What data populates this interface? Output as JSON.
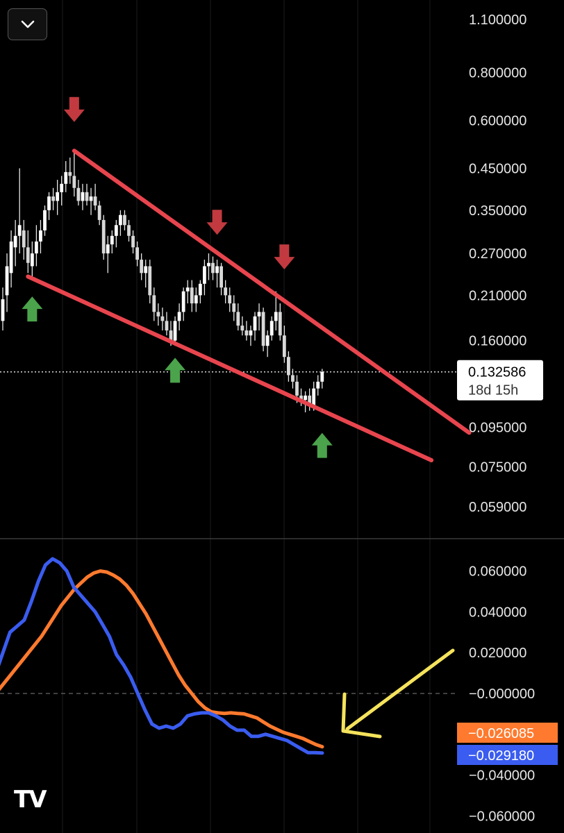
{
  "toolbar": {
    "collapse_icon": "chevron-down-icon"
  },
  "logo_text": "TV",
  "chart_data": [
    {
      "type": "candlestick",
      "y_scale": "log",
      "yticks": [
        "1.100000",
        "0.800000",
        "0.600000",
        "0.450000",
        "0.350000",
        "0.270000",
        "0.210000",
        "0.160000",
        "0.095000",
        "0.075000",
        "0.059000"
      ],
      "ytick_values": [
        1.1,
        0.8,
        0.6,
        0.45,
        0.35,
        0.27,
        0.21,
        0.16,
        0.095,
        0.075,
        0.059
      ],
      "current_price": {
        "value": "0.132586",
        "countdown": "18d 15h"
      },
      "trendlines": [
        {
          "name": "resistance",
          "color": "#e8454e",
          "from": [
            17,
            0.5
          ],
          "to": [
            111,
            0.092
          ]
        },
        {
          "name": "support",
          "color": "#e8454e",
          "from": [
            6,
            0.235
          ],
          "to": [
            102,
            0.078
          ]
        }
      ],
      "markers": [
        {
          "type": "down",
          "color": "#c23a3f",
          "x": 17,
          "price": 0.63
        },
        {
          "type": "down",
          "color": "#c23a3f",
          "x": 51,
          "price": 0.32
        },
        {
          "type": "down",
          "color": "#c23a3f",
          "x": 67,
          "price": 0.26
        },
        {
          "type": "up",
          "color": "#4ba34b",
          "x": 7,
          "price": 0.195
        },
        {
          "type": "up",
          "color": "#4ba34b",
          "x": 41,
          "price": 0.135
        },
        {
          "type": "up",
          "color": "#4ba34b",
          "x": 76,
          "price": 0.086
        }
      ],
      "ohlc": [
        [
          0.18,
          0.22,
          0.17,
          0.205
        ],
        [
          0.21,
          0.27,
          0.19,
          0.25
        ],
        [
          0.24,
          0.31,
          0.22,
          0.29
        ],
        [
          0.28,
          0.33,
          0.25,
          0.3
        ],
        [
          0.3,
          0.45,
          0.27,
          0.32
        ],
        [
          0.31,
          0.33,
          0.26,
          0.28
        ],
        [
          0.28,
          0.31,
          0.24,
          0.255
        ],
        [
          0.25,
          0.29,
          0.23,
          0.27
        ],
        [
          0.27,
          0.32,
          0.25,
          0.29
        ],
        [
          0.29,
          0.33,
          0.27,
          0.31
        ],
        [
          0.31,
          0.36,
          0.3,
          0.35
        ],
        [
          0.35,
          0.39,
          0.33,
          0.38
        ],
        [
          0.38,
          0.4,
          0.35,
          0.37
        ],
        [
          0.37,
          0.42,
          0.34,
          0.39
        ],
        [
          0.39,
          0.43,
          0.36,
          0.41
        ],
        [
          0.41,
          0.47,
          0.39,
          0.44
        ],
        [
          0.44,
          0.48,
          0.41,
          0.43
        ],
        [
          0.43,
          0.5,
          0.38,
          0.4
        ],
        [
          0.4,
          0.42,
          0.36,
          0.37
        ],
        [
          0.37,
          0.41,
          0.35,
          0.39
        ],
        [
          0.39,
          0.41,
          0.36,
          0.37
        ],
        [
          0.37,
          0.4,
          0.34,
          0.38
        ],
        [
          0.38,
          0.41,
          0.35,
          0.36
        ],
        [
          0.36,
          0.37,
          0.32,
          0.33
        ],
        [
          0.33,
          0.34,
          0.26,
          0.27
        ],
        [
          0.27,
          0.3,
          0.24,
          0.285
        ],
        [
          0.285,
          0.31,
          0.27,
          0.3
        ],
        [
          0.3,
          0.33,
          0.28,
          0.32
        ],
        [
          0.32,
          0.35,
          0.3,
          0.34
        ],
        [
          0.34,
          0.35,
          0.31,
          0.32
        ],
        [
          0.32,
          0.33,
          0.29,
          0.3
        ],
        [
          0.3,
          0.31,
          0.27,
          0.28
        ],
        [
          0.28,
          0.29,
          0.25,
          0.26
        ],
        [
          0.26,
          0.27,
          0.23,
          0.24
        ],
        [
          0.24,
          0.26,
          0.22,
          0.25
        ],
        [
          0.25,
          0.26,
          0.2,
          0.21
        ],
        [
          0.21,
          0.22,
          0.18,
          0.19
        ],
        [
          0.19,
          0.2,
          0.175,
          0.185
        ],
        [
          0.185,
          0.195,
          0.17,
          0.18
        ],
        [
          0.18,
          0.19,
          0.165,
          0.17
        ],
        [
          0.17,
          0.18,
          0.155,
          0.16
        ],
        [
          0.16,
          0.185,
          0.155,
          0.18
        ],
        [
          0.18,
          0.2,
          0.17,
          0.19
        ],
        [
          0.19,
          0.22,
          0.18,
          0.215
        ],
        [
          0.215,
          0.23,
          0.2,
          0.22
        ],
        [
          0.22,
          0.23,
          0.19,
          0.2
        ],
        [
          0.2,
          0.22,
          0.19,
          0.21
        ],
        [
          0.21,
          0.23,
          0.2,
          0.225
        ],
        [
          0.225,
          0.26,
          0.21,
          0.25
        ],
        [
          0.25,
          0.27,
          0.23,
          0.255
        ],
        [
          0.255,
          0.265,
          0.23,
          0.24
        ],
        [
          0.24,
          0.26,
          0.22,
          0.25
        ],
        [
          0.25,
          0.255,
          0.21,
          0.22
        ],
        [
          0.22,
          0.23,
          0.2,
          0.21
        ],
        [
          0.21,
          0.22,
          0.19,
          0.2
        ],
        [
          0.2,
          0.21,
          0.18,
          0.19
        ],
        [
          0.19,
          0.2,
          0.17,
          0.175
        ],
        [
          0.175,
          0.185,
          0.165,
          0.17
        ],
        [
          0.17,
          0.18,
          0.16,
          0.165
        ],
        [
          0.165,
          0.175,
          0.155,
          0.17
        ],
        [
          0.17,
          0.19,
          0.16,
          0.185
        ],
        [
          0.185,
          0.2,
          0.17,
          0.19
        ],
        [
          0.19,
          0.195,
          0.15,
          0.155
        ],
        [
          0.155,
          0.17,
          0.145,
          0.165
        ],
        [
          0.165,
          0.185,
          0.16,
          0.18
        ],
        [
          0.18,
          0.215,
          0.17,
          0.19
        ],
        [
          0.19,
          0.2,
          0.16,
          0.165
        ],
        [
          0.165,
          0.175,
          0.14,
          0.145
        ],
        [
          0.145,
          0.15,
          0.125,
          0.13
        ],
        [
          0.13,
          0.135,
          0.12,
          0.125
        ],
        [
          0.125,
          0.13,
          0.11,
          0.115
        ],
        [
          0.115,
          0.12,
          0.108,
          0.112
        ],
        [
          0.112,
          0.118,
          0.104,
          0.115
        ],
        [
          0.115,
          0.12,
          0.105,
          0.108
        ],
        [
          0.108,
          0.125,
          0.105,
          0.12
        ],
        [
          0.12,
          0.13,
          0.115,
          0.125
        ],
        [
          0.125,
          0.135,
          0.12,
          0.132586
        ]
      ]
    },
    {
      "type": "line",
      "indicator": "oscillator",
      "yticks": [
        "0.060000",
        "0.040000",
        "0.020000",
        "−0.000000",
        "−0.040000",
        "−0.060000"
      ],
      "ytick_values": [
        0.06,
        0.04,
        0.02,
        0,
        -0.04,
        -0.06
      ],
      "series": [
        {
          "color": "#ff7a2e",
          "last_value": "−0.026085",
          "values": [
            0.0,
            0.004,
            0.008,
            0.012,
            0.016,
            0.02,
            0.024,
            0.028,
            0.033,
            0.038,
            0.043,
            0.047,
            0.051,
            0.054,
            0.057,
            0.059,
            0.06,
            0.0595,
            0.058,
            0.056,
            0.053,
            0.049,
            0.044,
            0.039,
            0.033,
            0.027,
            0.021,
            0.015,
            0.009,
            0.004,
            0.0,
            -0.004,
            -0.007,
            -0.009,
            -0.0095,
            -0.0098,
            -0.0095,
            -0.0098,
            -0.01,
            -0.011,
            -0.012,
            -0.014,
            -0.016,
            -0.0175,
            -0.019,
            -0.02,
            -0.021,
            -0.022,
            -0.0235,
            -0.025,
            -0.026085
          ]
        },
        {
          "color": "#3a5cf0",
          "last_value": "−0.029180",
          "values": [
            0.01,
            0.02,
            0.03,
            0.033,
            0.036,
            0.045,
            0.055,
            0.063,
            0.066,
            0.064,
            0.06,
            0.052,
            0.048,
            0.044,
            0.04,
            0.034,
            0.028,
            0.019,
            0.014,
            0.008,
            0.0,
            -0.008,
            -0.015,
            -0.017,
            -0.016,
            -0.017,
            -0.015,
            -0.011,
            -0.01,
            -0.0095,
            -0.0095,
            -0.011,
            -0.013,
            -0.016,
            -0.018,
            -0.018,
            -0.021,
            -0.021,
            -0.02,
            -0.021,
            -0.022,
            -0.023,
            -0.025,
            -0.027,
            -0.029,
            -0.029,
            -0.02918
          ]
        }
      ]
    }
  ],
  "annotation": {
    "type": "arrow",
    "color": "#f5e35c"
  }
}
